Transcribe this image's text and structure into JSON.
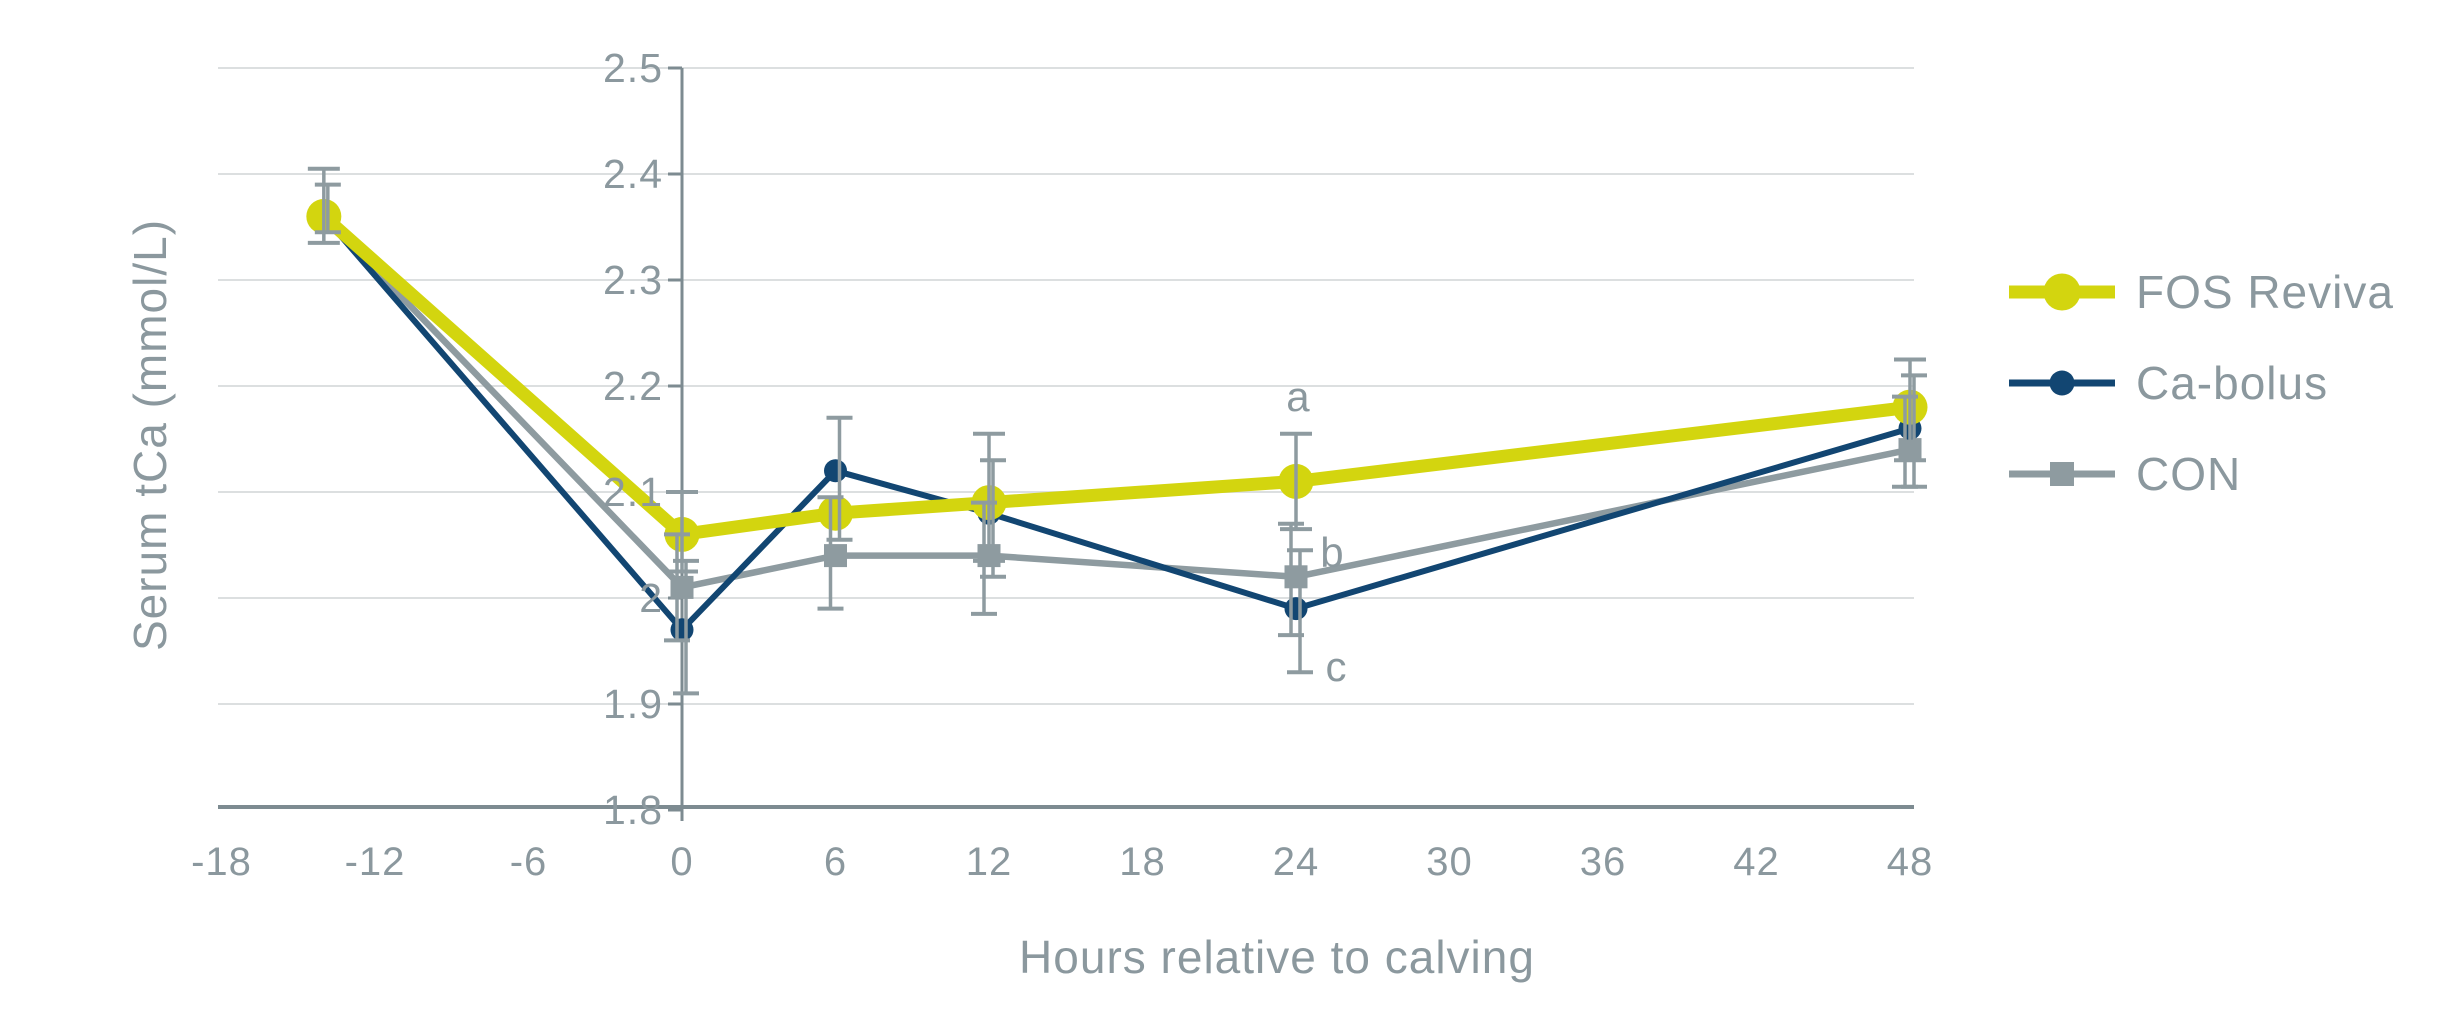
{
  "colors": {
    "background": "#ffffff",
    "grid": "#dcdfe0",
    "axis": "#7d8b91",
    "text": "#8b989e",
    "error_bar": "#8e9ba0",
    "fos_reviva": "#d3d50f",
    "ca_bolus": "#124672",
    "con": "#8e9ba0"
  },
  "chart_data": {
    "type": "line",
    "title": "",
    "xlabel": "Hours relative to calving",
    "ylabel": "Serum tCa (mmol/L)",
    "xlim": [
      -18.2,
      48.2
    ],
    "ylim": [
      1.8,
      2.5
    ],
    "grid": "horizontal-only",
    "legend_position": "right",
    "x_ticks": [
      -18,
      -12,
      -6,
      0,
      6,
      12,
      18,
      24,
      30,
      36,
      42,
      48
    ],
    "x_tick_labels": [
      "-18",
      "-12",
      "-6",
      "0",
      "6",
      "12",
      "18",
      "24",
      "30",
      "36",
      "42",
      "48"
    ],
    "y_ticks": [
      2.5,
      2.4,
      2.3,
      2.2,
      2.1,
      2.0,
      1.9,
      1.8
    ],
    "y_tick_labels": [
      "2.5",
      "2.4",
      "2.3",
      "2.2",
      "2.1",
      "2",
      "1.9",
      "1.8"
    ],
    "x": [
      -14,
      0,
      6,
      12,
      24,
      48
    ],
    "series": [
      {
        "name": "FOS Reviva",
        "marker": "circle",
        "color": "#d3d50f",
        "values": [
          2.36,
          2.06,
          2.08,
          2.09,
          2.11,
          2.18
        ],
        "error_low": [
          2.335,
          2.025,
          null,
          2.035,
          2.065,
          2.13
        ],
        "error_high": [
          2.405,
          2.1,
          null,
          2.155,
          2.155,
          2.225
        ]
      },
      {
        "name": "Ca-bolus",
        "marker": "circle",
        "color": "#124672",
        "values": [
          2.36,
          1.97,
          2.12,
          2.08,
          1.99,
          2.16
        ],
        "error_low": [
          2.345,
          1.91,
          2.055,
          2.02,
          1.93,
          2.105
        ],
        "error_high": [
          2.39,
          2.035,
          2.17,
          2.13,
          2.045,
          2.21
        ]
      },
      {
        "name": "CON",
        "marker": "square",
        "color": "#8e9ba0",
        "values": [
          2.36,
          2.01,
          2.04,
          2.04,
          2.02,
          2.14
        ],
        "error_low": [
          null,
          1.96,
          1.99,
          1.985,
          1.965,
          2.105
        ],
        "error_high": [
          null,
          2.06,
          2.095,
          2.09,
          2.07,
          2.19
        ]
      }
    ],
    "annotations": [
      {
        "text": "a",
        "x": 24,
        "y": 2.19,
        "dx": 2
      },
      {
        "text": "b",
        "x": 24,
        "y": 2.042,
        "dx": 36
      },
      {
        "text": "c",
        "x": 24,
        "y": 1.935,
        "dx": 40
      }
    ]
  }
}
